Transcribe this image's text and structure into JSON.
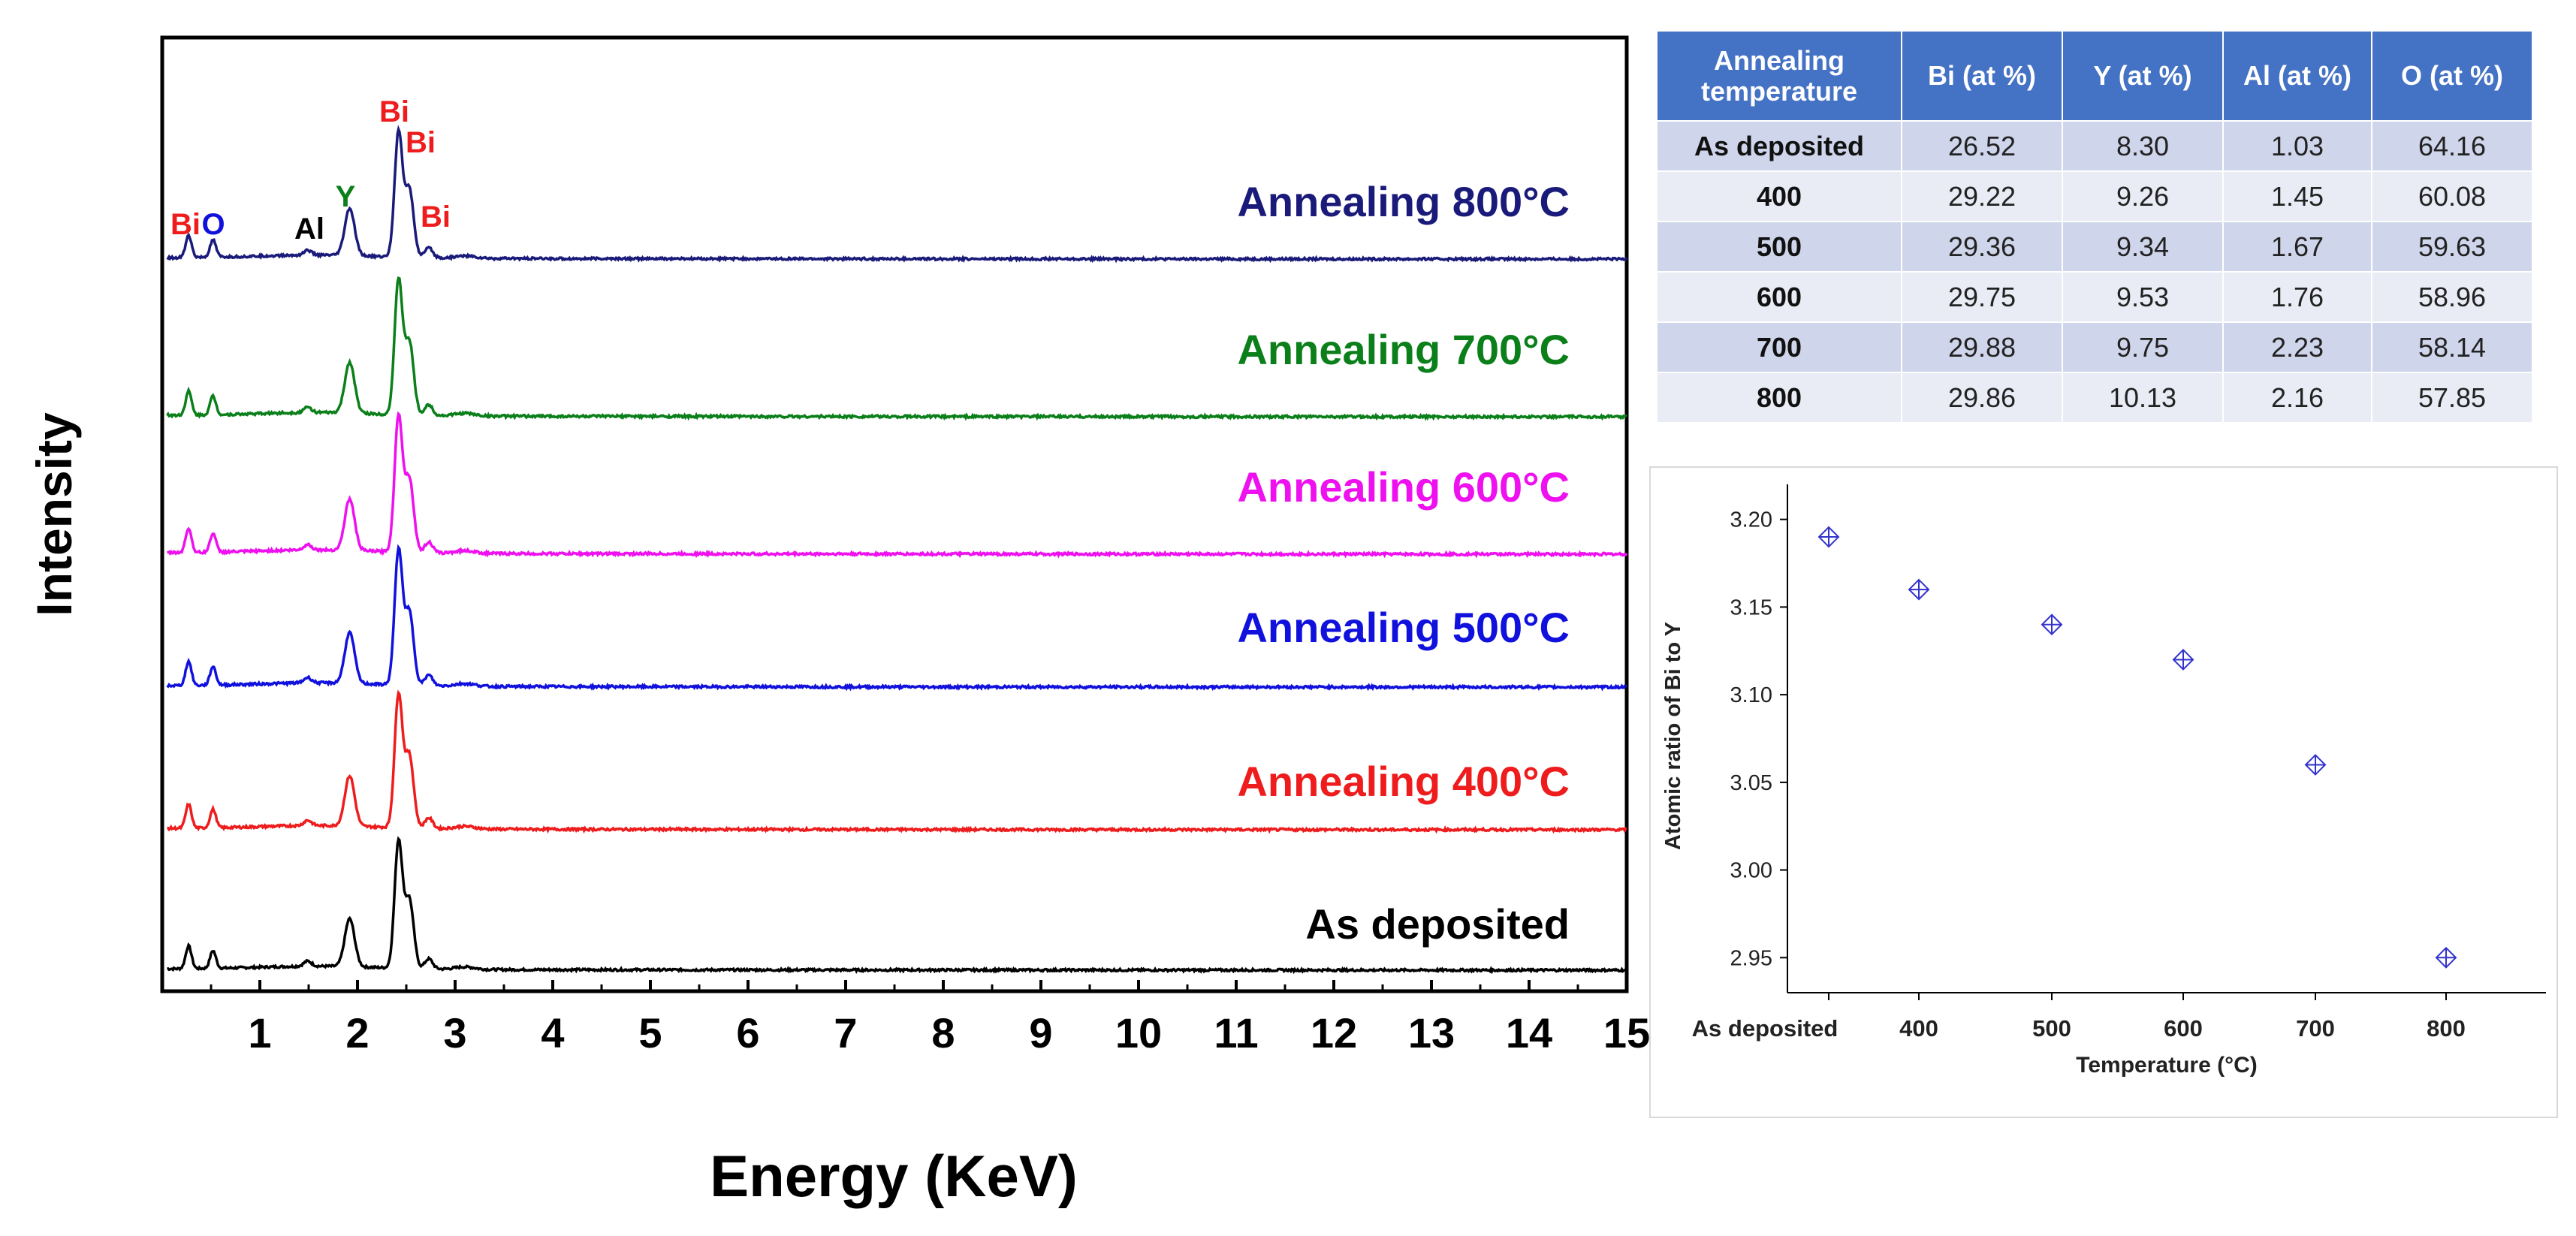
{
  "chart_data": [
    {
      "type": "line",
      "title": "",
      "xlabel": "Energy (KeV)",
      "ylabel": "Intensity",
      "xlim": [
        0,
        15
      ],
      "xticks": [
        "1",
        "2",
        "3",
        "4",
        "5",
        "6",
        "7",
        "8",
        "9",
        "10",
        "11",
        "12",
        "13",
        "14",
        "15"
      ],
      "grid": false,
      "series": [
        {
          "name": "As deposited",
          "color": "#000000"
        },
        {
          "name": "Annealing 400°C",
          "color": "#ee1c1c"
        },
        {
          "name": "Annealing 500°C",
          "color": "#1111dd"
        },
        {
          "name": "Annealing 600°C",
          "color": "#ee10ee"
        },
        {
          "name": "Annealing 700°C",
          "color": "#0a7f1a"
        },
        {
          "name": "Annealing 800°C",
          "color": "#1a1a7a"
        }
      ],
      "peaks_kev": [
        {
          "x": 0.27,
          "h": 0.18
        },
        {
          "x": 0.52,
          "h": 0.14
        },
        {
          "x": 1.49,
          "h": 0.04
        },
        {
          "x": 1.92,
          "h": 0.38
        },
        {
          "x": 2.42,
          "h": 1.0
        },
        {
          "x": 2.53,
          "h": 0.55
        },
        {
          "x": 2.73,
          "h": 0.08
        },
        {
          "x": 3.1,
          "h": 0.02
        }
      ],
      "peak_annotations": [
        {
          "text": "Bi",
          "color": "#ee1c1c"
        },
        {
          "text": "O",
          "color": "#1111dd"
        },
        {
          "text": "Al",
          "color": "#000000"
        },
        {
          "text": "Y",
          "color": "#0a7f1a"
        },
        {
          "text": "Bi",
          "color": "#ee1c1c"
        },
        {
          "text": "Bi",
          "color": "#ee1c1c"
        },
        {
          "text": "Bi",
          "color": "#ee1c1c"
        }
      ]
    },
    {
      "type": "scatter",
      "title": "",
      "xlabel": "Temperature (°C)",
      "ylabel": "Atomic ratio of Bi to Y",
      "ylim": [
        2.93,
        3.22
      ],
      "yticks": [
        "2.95",
        "3.00",
        "3.05",
        "3.10",
        "3.15",
        "3.20"
      ],
      "categories": [
        "As deposited",
        "400",
        "500",
        "600",
        "700",
        "800"
      ],
      "values": [
        3.19,
        3.16,
        3.14,
        3.12,
        3.06,
        2.95
      ],
      "marker_color": "#3333cc"
    }
  ],
  "table": {
    "headers": [
      "Annealing temperature",
      "Bi (at %)",
      "Y (at %)",
      "Al (at %)",
      "O (at %)"
    ],
    "rows": [
      [
        "As deposited",
        "26.52",
        "8.30",
        "1.03",
        "64.16"
      ],
      [
        "400",
        "29.22",
        "9.26",
        "1.45",
        "60.08"
      ],
      [
        "500",
        "29.36",
        "9.34",
        "1.67",
        "59.63"
      ],
      [
        "600",
        "29.75",
        "9.53",
        "1.76",
        "58.96"
      ],
      [
        "700",
        "29.88",
        "9.75",
        "2.23",
        "58.14"
      ],
      [
        "800",
        "29.86",
        "10.13",
        "2.16",
        "57.85"
      ]
    ]
  }
}
